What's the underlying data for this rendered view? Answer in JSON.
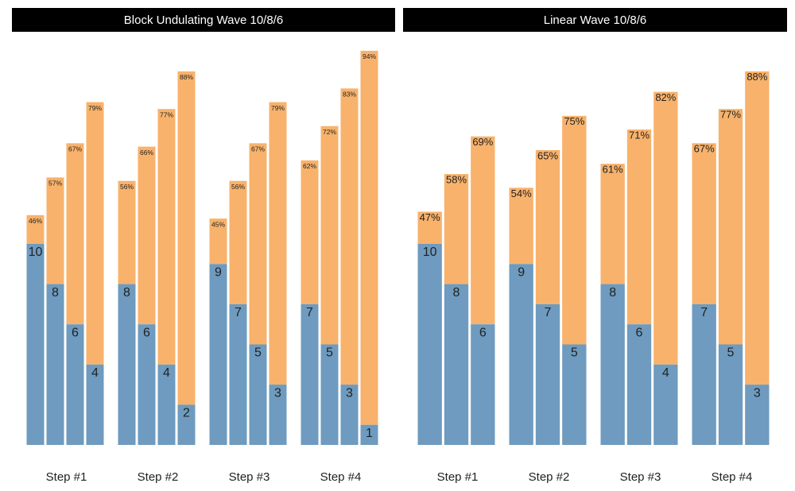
{
  "chart_data": [
    {
      "type": "bar",
      "title": "Block Undulating Wave 10/8/6",
      "categories": [
        "Step #1",
        "Step #2",
        "Step #3",
        "Step #4"
      ],
      "series": [
        {
          "color": "#6e9bbf",
          "values": [
            [
              10,
              8,
              6,
              4
            ],
            [
              8,
              6,
              4,
              2
            ],
            [
              9,
              7,
              5,
              3
            ],
            [
              7,
              5,
              3,
              1
            ]
          ]
        },
        {
          "color": "#f8b26b",
          "axis": "y2",
          "values": [
            [
              46,
              57,
              67,
              79
            ],
            [
              56,
              66,
              77,
              88
            ],
            [
              45,
              56,
              67,
              79
            ],
            [
              62,
              72,
              83,
              94
            ]
          ],
          "value_labels": [
            [
              "46%",
              "57%",
              "67%",
              "79%"
            ],
            [
              "56%",
              "66%",
              "77%",
              "88%"
            ],
            [
              "45%",
              "56%",
              "67%",
              "79%"
            ],
            [
              "62%",
              "72%",
              "83%",
              "94%"
            ]
          ]
        }
      ],
      "ylim": [
        0,
        20
      ],
      "y2lim": [
        -21.1,
        96.3
      ]
    },
    {
      "type": "bar",
      "title": "Linear Wave 10/8/6",
      "categories": [
        "Step #1",
        "Step #2",
        "Step #3",
        "Step #4"
      ],
      "series": [
        {
          "color": "#6e9bbf",
          "values": [
            [
              10,
              8,
              6
            ],
            [
              9,
              7,
              5
            ],
            [
              8,
              6,
              4
            ],
            [
              7,
              5,
              3
            ]
          ]
        },
        {
          "color": "#f8b26b",
          "axis": "y2",
          "values": [
            [
              47,
              58,
              69
            ],
            [
              54,
              65,
              75
            ],
            [
              61,
              71,
              82
            ],
            [
              67,
              77,
              88
            ]
          ],
          "value_labels": [
            [
              "47%",
              "58%",
              "69%"
            ],
            [
              "54%",
              "65%",
              "75%"
            ],
            [
              "61%",
              "71%",
              "82%"
            ],
            [
              "67%",
              "77%",
              "88%"
            ]
          ]
        }
      ],
      "ylim": [
        0,
        20
      ],
      "y2lim": [
        -21.1,
        96.3
      ]
    }
  ]
}
